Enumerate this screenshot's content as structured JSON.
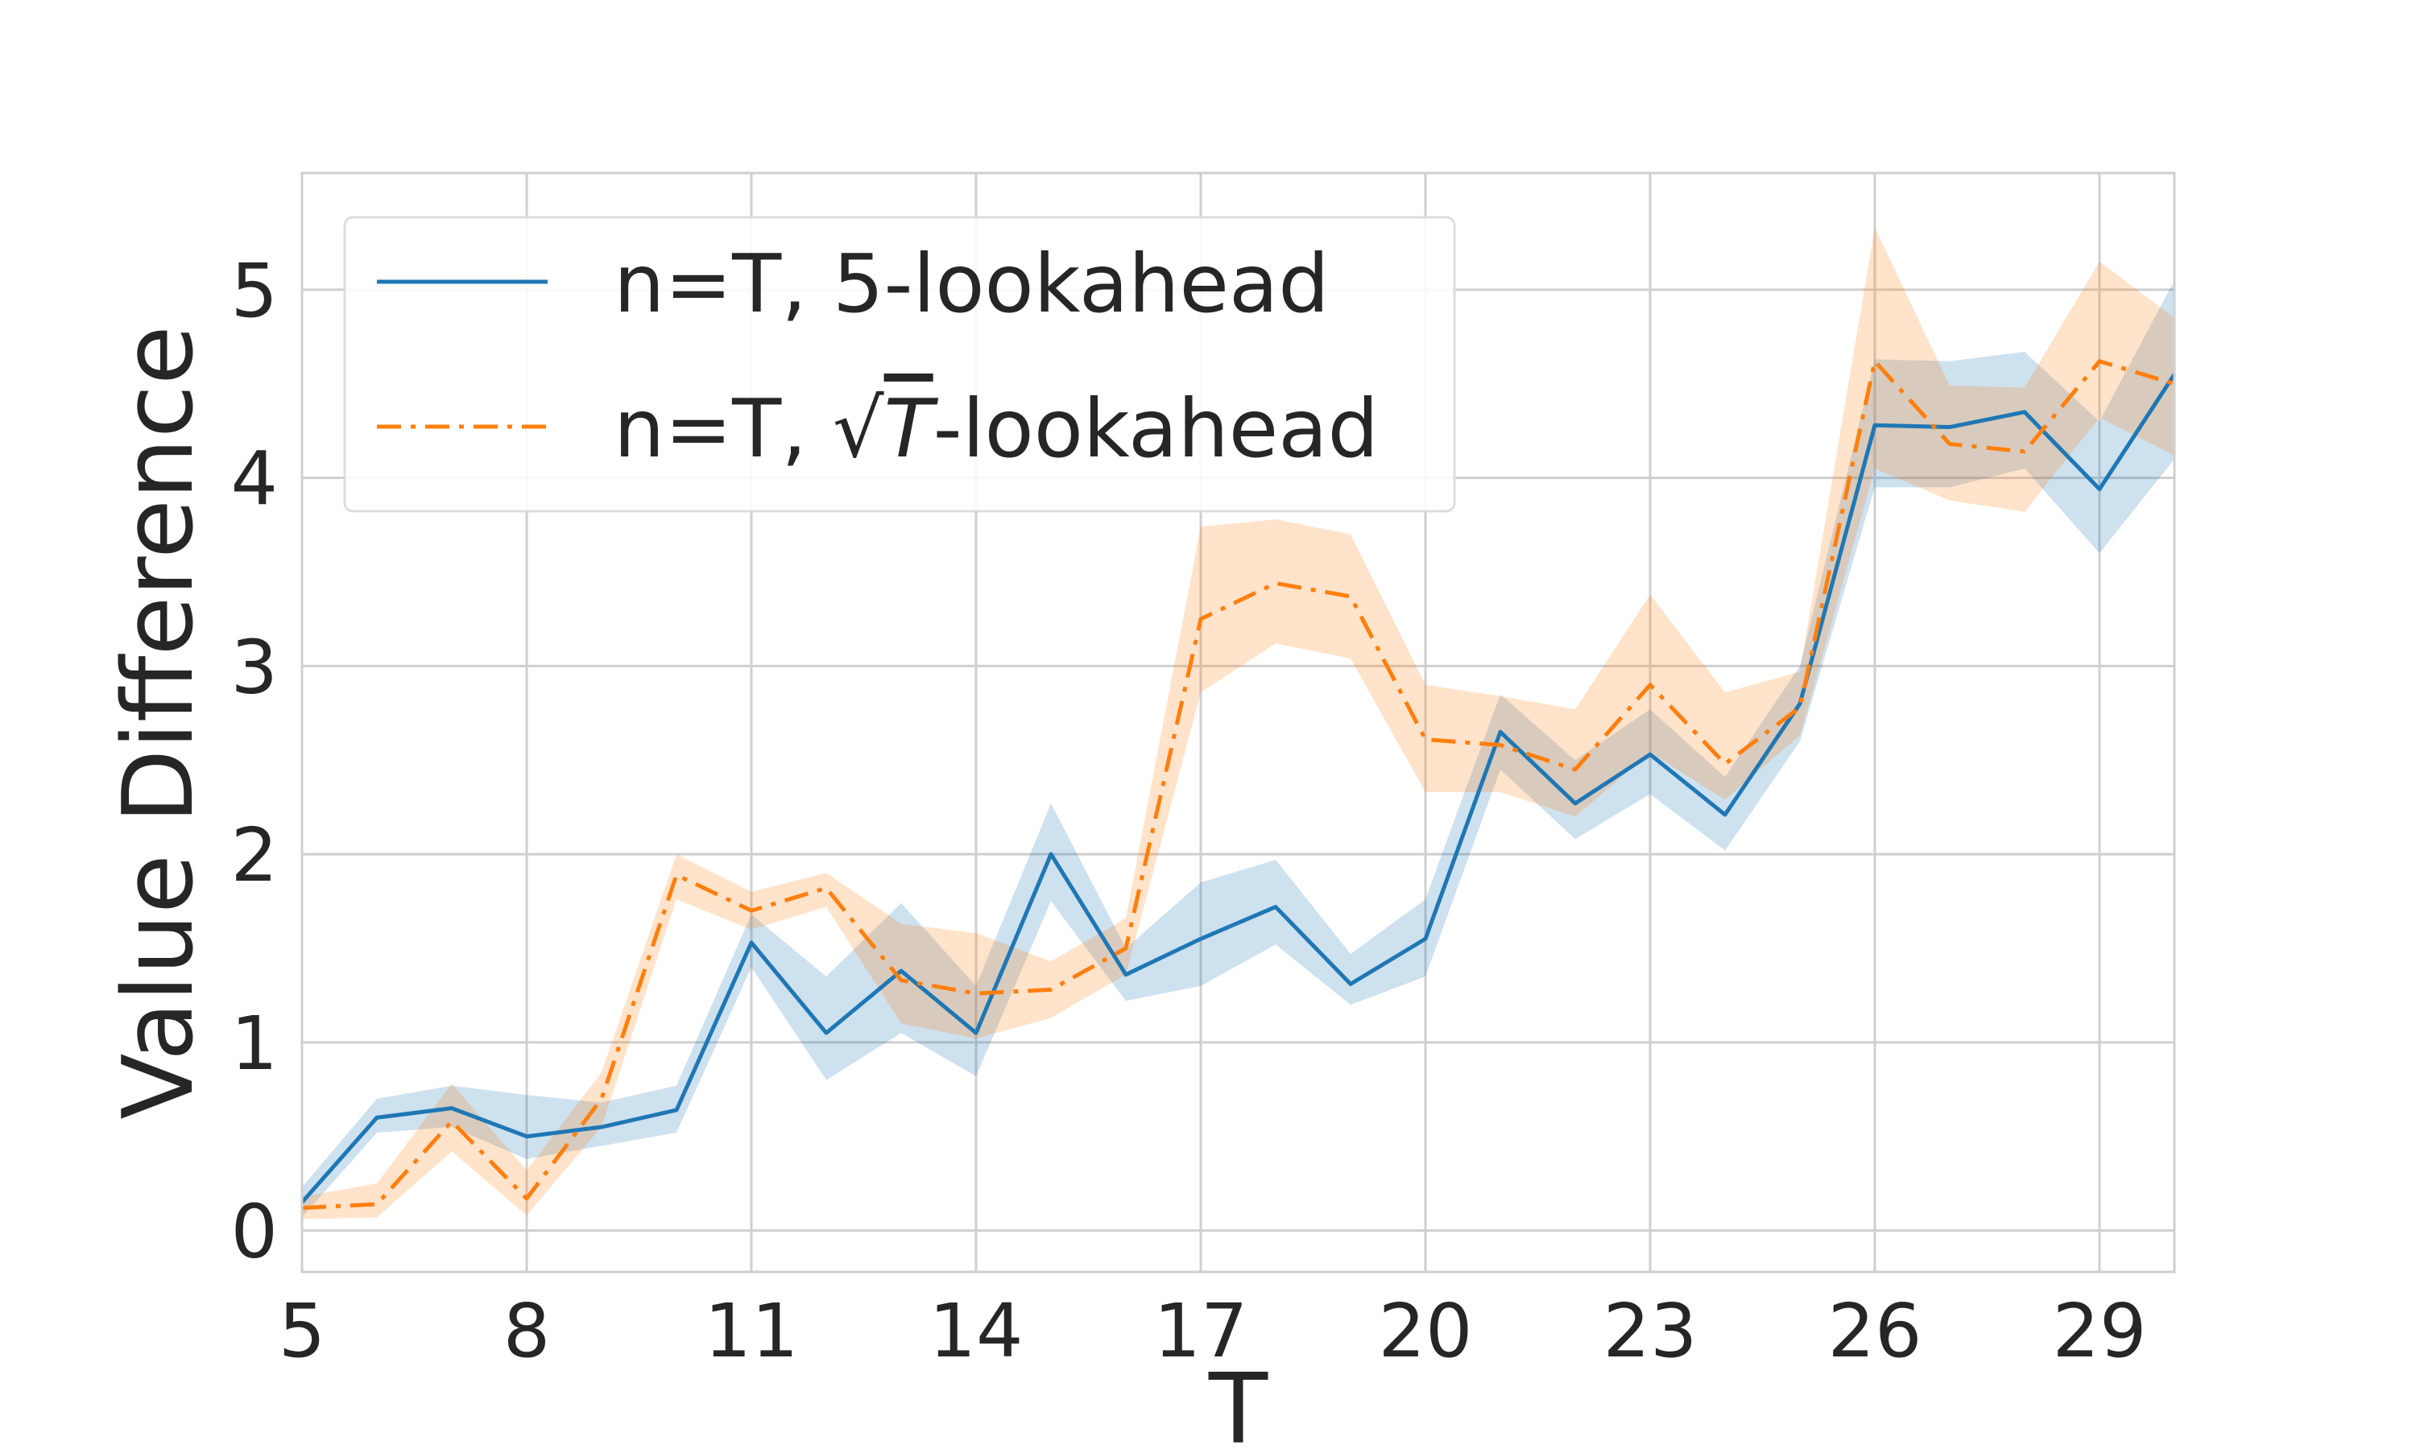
{
  "chart_data": {
    "type": "line",
    "xlabel": "T",
    "ylabel": "Value Difference",
    "xlim": [
      5,
      30
    ],
    "ylim": [
      -0.22,
      5.62
    ],
    "xticks": [
      "5",
      "8",
      "11",
      "14",
      "17",
      "20",
      "23",
      "26",
      "29"
    ],
    "yticks": [
      "0",
      "1",
      "2",
      "3",
      "4",
      "5"
    ],
    "grid": true,
    "legend_position": "top-left",
    "x": [
      5,
      6,
      7,
      8,
      9,
      10,
      11,
      12,
      13,
      14,
      15,
      16,
      17,
      18,
      19,
      20,
      21,
      22,
      23,
      24,
      25,
      26,
      27,
      28,
      29,
      30
    ],
    "series": [
      {
        "name": "n=T, 5-lookahead",
        "color": "#1f77b4",
        "line_style": "solid",
        "values": [
          0.15,
          0.6,
          0.65,
          0.5,
          0.55,
          0.64,
          1.53,
          1.05,
          1.38,
          1.05,
          2.0,
          1.36,
          1.55,
          1.72,
          1.31,
          1.55,
          2.65,
          2.27,
          2.53,
          2.21,
          2.8,
          4.28,
          4.27,
          4.35,
          3.94,
          4.55
        ],
        "lower": [
          0.07,
          0.52,
          0.55,
          0.38,
          0.45,
          0.52,
          1.4,
          0.8,
          1.05,
          0.82,
          1.75,
          1.22,
          1.3,
          1.52,
          1.2,
          1.35,
          2.45,
          2.08,
          2.32,
          2.02,
          2.6,
          3.95,
          3.95,
          4.05,
          3.6,
          4.1
        ],
        "upper": [
          0.23,
          0.7,
          0.77,
          0.72,
          0.68,
          0.77,
          1.68,
          1.35,
          1.74,
          1.3,
          2.27,
          1.5,
          1.85,
          1.97,
          1.47,
          1.76,
          2.85,
          2.5,
          2.77,
          2.41,
          3.0,
          4.63,
          4.62,
          4.67,
          4.3,
          5.05
        ]
      },
      {
        "name": "n=T, √T-lookahead",
        "name_prefix": "n=T, ",
        "name_symbol": "T",
        "name_suffix": "-lookahead",
        "color": "#ff7f0e",
        "line_style": "dashdot",
        "values": [
          0.12,
          0.14,
          0.58,
          0.17,
          0.7,
          1.89,
          1.7,
          1.82,
          1.33,
          1.26,
          1.28,
          1.5,
          3.25,
          3.44,
          3.37,
          2.61,
          2.58,
          2.45,
          2.9,
          2.48,
          2.78,
          4.62,
          4.18,
          4.14,
          4.62,
          4.5
        ],
        "lower": [
          0.06,
          0.07,
          0.42,
          0.08,
          0.55,
          1.76,
          1.6,
          1.72,
          1.1,
          1.02,
          1.13,
          1.36,
          2.86,
          3.12,
          3.04,
          2.33,
          2.33,
          2.2,
          2.54,
          2.29,
          2.63,
          4.05,
          3.88,
          3.82,
          4.32,
          4.12
        ],
        "upper": [
          0.18,
          0.25,
          0.78,
          0.32,
          0.84,
          2.0,
          1.8,
          1.9,
          1.63,
          1.58,
          1.43,
          1.66,
          3.74,
          3.78,
          3.7,
          2.9,
          2.84,
          2.77,
          3.38,
          2.86,
          2.97,
          5.33,
          4.49,
          4.48,
          5.15,
          4.85
        ]
      }
    ]
  }
}
